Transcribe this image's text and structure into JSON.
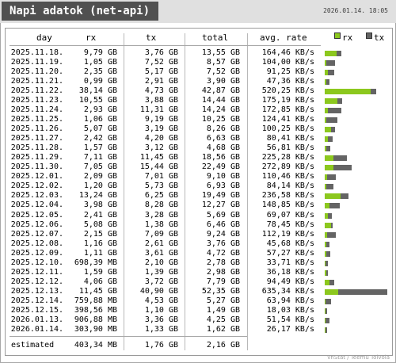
{
  "app": {
    "title": "Napi adatok (net-api)",
    "datetime": "2026.01.14. 18:05"
  },
  "table": {
    "headers": {
      "day": "day",
      "rx": "rx",
      "tx": "tx",
      "total": "total",
      "rate": "avg. rate"
    },
    "legend": {
      "rx_label": "rx",
      "tx_label": "tx",
      "rx_color": "#8cc81e",
      "tx_color": "#646464"
    },
    "rows": [
      {
        "day": "2025.11.18.",
        "rx": "9,79 GB",
        "tx": "3,76 GB",
        "total": "13,55 GB",
        "rate": "164,46 KB/s",
        "rx_gb": 9.79,
        "tx_gb": 3.76
      },
      {
        "day": "2025.11.19.",
        "rx": "1,05 GB",
        "tx": "7,52 GB",
        "total": "8,57 GB",
        "rate": "104,00 KB/s",
        "rx_gb": 1.05,
        "tx_gb": 7.52
      },
      {
        "day": "2025.11.20.",
        "rx": "2,35 GB",
        "tx": "5,17 GB",
        "total": "7,52 GB",
        "rate": "91,25 KB/s",
        "rx_gb": 2.35,
        "tx_gb": 5.17
      },
      {
        "day": "2025.11.21.",
        "rx": "0,99 GB",
        "tx": "2,91 GB",
        "total": "3,90 GB",
        "rate": "47,36 KB/s",
        "rx_gb": 0.99,
        "tx_gb": 2.91
      },
      {
        "day": "2025.11.22.",
        "rx": "38,14 GB",
        "tx": "4,73 GB",
        "total": "42,87 GB",
        "rate": "520,25 KB/s",
        "rx_gb": 38.14,
        "tx_gb": 4.73
      },
      {
        "day": "2025.11.23.",
        "rx": "10,55 GB",
        "tx": "3,88 GB",
        "total": "14,44 GB",
        "rate": "175,19 KB/s",
        "rx_gb": 10.55,
        "tx_gb": 3.88
      },
      {
        "day": "2025.11.24.",
        "rx": "2,93 GB",
        "tx": "11,31 GB",
        "total": "14,24 GB",
        "rate": "172,85 KB/s",
        "rx_gb": 2.93,
        "tx_gb": 11.31
      },
      {
        "day": "2025.11.25.",
        "rx": "1,06 GB",
        "tx": "9,19 GB",
        "total": "10,25 GB",
        "rate": "124,41 KB/s",
        "rx_gb": 1.06,
        "tx_gb": 9.19
      },
      {
        "day": "2025.11.26.",
        "rx": "5,07 GB",
        "tx": "3,19 GB",
        "total": "8,26 GB",
        "rate": "100,25 KB/s",
        "rx_gb": 5.07,
        "tx_gb": 3.19
      },
      {
        "day": "2025.11.27.",
        "rx": "2,42 GB",
        "tx": "4,20 GB",
        "total": "6,63 GB",
        "rate": "80,41 KB/s",
        "rx_gb": 2.42,
        "tx_gb": 4.2
      },
      {
        "day": "2025.11.28.",
        "rx": "1,57 GB",
        "tx": "3,12 GB",
        "total": "4,68 GB",
        "rate": "56,81 KB/s",
        "rx_gb": 1.57,
        "tx_gb": 3.12
      },
      {
        "day": "2025.11.29.",
        "rx": "7,11 GB",
        "tx": "11,45 GB",
        "total": "18,56 GB",
        "rate": "225,28 KB/s",
        "rx_gb": 7.11,
        "tx_gb": 11.45
      },
      {
        "day": "2025.11.30.",
        "rx": "7,05 GB",
        "tx": "15,44 GB",
        "total": "22,49 GB",
        "rate": "272,89 KB/s",
        "rx_gb": 7.05,
        "tx_gb": 15.44
      },
      {
        "day": "2025.12.01.",
        "rx": "2,09 GB",
        "tx": "7,01 GB",
        "total": "9,10 GB",
        "rate": "110,46 KB/s",
        "rx_gb": 2.09,
        "tx_gb": 7.01
      },
      {
        "day": "2025.12.02.",
        "rx": "1,20 GB",
        "tx": "5,73 GB",
        "total": "6,93 GB",
        "rate": "84,14 KB/s",
        "rx_gb": 1.2,
        "tx_gb": 5.73
      },
      {
        "day": "2025.12.03.",
        "rx": "13,24 GB",
        "tx": "6,25 GB",
        "total": "19,49 GB",
        "rate": "236,58 KB/s",
        "rx_gb": 13.24,
        "tx_gb": 6.25
      },
      {
        "day": "2025.12.04.",
        "rx": "3,98 GB",
        "tx": "8,28 GB",
        "total": "12,27 GB",
        "rate": "148,85 KB/s",
        "rx_gb": 3.98,
        "tx_gb": 8.28
      },
      {
        "day": "2025.12.05.",
        "rx": "2,41 GB",
        "tx": "3,28 GB",
        "total": "5,69 GB",
        "rate": "69,07 KB/s",
        "rx_gb": 2.41,
        "tx_gb": 3.28
      },
      {
        "day": "2025.12.06.",
        "rx": "5,08 GB",
        "tx": "1,38 GB",
        "total": "6,46 GB",
        "rate": "78,45 KB/s",
        "rx_gb": 5.08,
        "tx_gb": 1.38
      },
      {
        "day": "2025.12.07.",
        "rx": "2,15 GB",
        "tx": "7,09 GB",
        "total": "9,24 GB",
        "rate": "112,19 KB/s",
        "rx_gb": 2.15,
        "tx_gb": 7.09
      },
      {
        "day": "2025.12.08.",
        "rx": "1,16 GB",
        "tx": "2,61 GB",
        "total": "3,76 GB",
        "rate": "45,68 KB/s",
        "rx_gb": 1.16,
        "tx_gb": 2.61
      },
      {
        "day": "2025.12.09.",
        "rx": "1,11 GB",
        "tx": "3,61 GB",
        "total": "4,72 GB",
        "rate": "57,27 KB/s",
        "rx_gb": 1.11,
        "tx_gb": 3.61
      },
      {
        "day": "2025.12.10.",
        "rx": "698,39 MB",
        "tx": "2,10 GB",
        "total": "2,78 GB",
        "rate": "33,71 KB/s",
        "rx_gb": 0.68,
        "tx_gb": 2.1
      },
      {
        "day": "2025.12.11.",
        "rx": "1,59 GB",
        "tx": "1,39 GB",
        "total": "2,98 GB",
        "rate": "36,18 KB/s",
        "rx_gb": 1.59,
        "tx_gb": 1.39
      },
      {
        "day": "2025.12.12.",
        "rx": "4,06 GB",
        "tx": "3,72 GB",
        "total": "7,79 GB",
        "rate": "94,49 KB/s",
        "rx_gb": 4.06,
        "tx_gb": 3.72
      },
      {
        "day": "2025.12.13.",
        "rx": "11,45 GB",
        "tx": "40,90 GB",
        "total": "52,35 GB",
        "rate": "635,34 KB/s",
        "rx_gb": 11.45,
        "tx_gb": 40.9
      },
      {
        "day": "2025.12.14.",
        "rx": "759,88 MB",
        "tx": "4,53 GB",
        "total": "5,27 GB",
        "rate": "63,94 KB/s",
        "rx_gb": 0.74,
        "tx_gb": 4.53
      },
      {
        "day": "2025.12.15.",
        "rx": "398,56 MB",
        "tx": "1,10 GB",
        "total": "1,49 GB",
        "rate": "18,03 KB/s",
        "rx_gb": 0.39,
        "tx_gb": 1.1
      },
      {
        "day": "2026.01.13.",
        "rx": "906,88 MB",
        "tx": "3,36 GB",
        "total": "4,25 GB",
        "rate": "51,54 KB/s",
        "rx_gb": 0.89,
        "tx_gb": 3.36
      },
      {
        "day": "2026.01.14.",
        "rx": "303,90 MB",
        "tx": "1,33 GB",
        "total": "1,62 GB",
        "rate": "26,17 KB/s",
        "rx_gb": 0.3,
        "tx_gb": 1.33
      }
    ],
    "estimated": {
      "label": "estimated",
      "rx": "403,34 MB",
      "tx": "1,76 GB",
      "total": "2,16 GB"
    }
  },
  "footer": {
    "credit": "vnStat / Teemu Toivola"
  }
}
